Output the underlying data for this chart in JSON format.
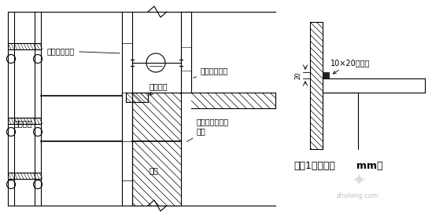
{
  "bg_color": "#ffffff",
  "lc": "#000000",
  "label_外侧配大模板": "外侧配大模板",
  "label_内侧配木模板": "内侧配木模板",
  "label_通长木方": "通长木方",
  "label_外脚手架": "外脚手架",
  "label_穿墙螺栓": "穿墙螺栓与外架\n拉接",
  "label_外墙": "外墙",
  "label_节点1": "节点1（单位：",
  "label_mm": "mm）",
  "label_明缝条": "10×20明缝条",
  "watermark": "zhulong.com",
  "fig_w": 5.49,
  "fig_h": 2.74,
  "dpi": 100
}
